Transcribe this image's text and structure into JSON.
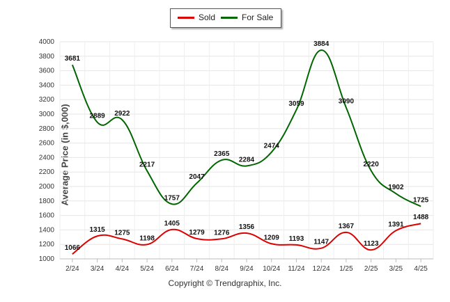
{
  "chart_data": {
    "type": "line",
    "title": "",
    "xlabel": "",
    "ylabel": "Average Price (in $,000)",
    "ylim": [
      1000,
      4000
    ],
    "yticks": [
      1000,
      1200,
      1400,
      1600,
      1800,
      2000,
      2200,
      2400,
      2600,
      2800,
      3000,
      3200,
      3400,
      3600,
      3800,
      4000
    ],
    "categories": [
      "2/24",
      "3/24",
      "4/24",
      "5/24",
      "6/24",
      "7/24",
      "8/24",
      "9/24",
      "10/24",
      "11/24",
      "12/24",
      "1/25",
      "2/25",
      "3/25",
      "4/25"
    ],
    "grid": true,
    "legend_position": "top-center",
    "series": [
      {
        "name": "Sold",
        "color": "#dd0000",
        "values": [
          1066,
          1315,
          1275,
          1198,
          1405,
          1279,
          1276,
          1356,
          1209,
          1193,
          1147,
          1367,
          1123,
          1391,
          1488
        ]
      },
      {
        "name": "For Sale",
        "color": "#006600",
        "values": [
          3681,
          2889,
          2922,
          2217,
          1757,
          2047,
          2365,
          2284,
          2474,
          3059,
          3884,
          3090,
          2220,
          1902,
          1725
        ]
      }
    ]
  },
  "footer": "Copyright © Trendgraphix, Inc."
}
